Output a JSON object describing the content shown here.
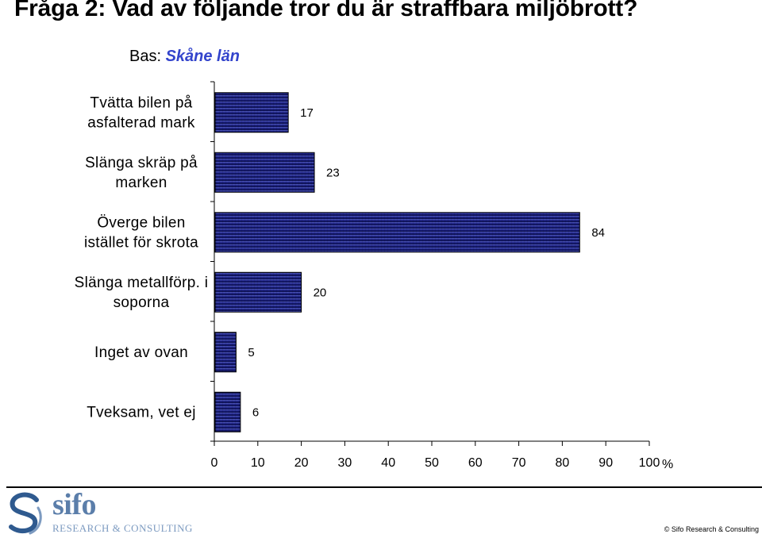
{
  "title": "Fråga 2:  Vad av följande tror du är straffbara miljöbrott?",
  "subtitle": {
    "prefix": "Bas: ",
    "accent": "Skåne län"
  },
  "chart_data": {
    "type": "bar",
    "orientation": "horizontal",
    "categories": [
      [
        "Tvätta bilen på",
        "asfalterad mark"
      ],
      [
        "Slänga skräp på",
        "marken"
      ],
      [
        "Överge bilen",
        "istället för skrota"
      ],
      [
        "Slänga metallförp. i",
        "soporna"
      ],
      [
        "Inget av ovan"
      ],
      [
        "Tveksam, vet ej"
      ]
    ],
    "values": [
      17,
      23,
      84,
      20,
      5,
      6
    ],
    "xlim": [
      0,
      100
    ],
    "xticks": [
      0,
      10,
      20,
      30,
      40,
      50,
      60,
      70,
      80,
      90,
      100
    ],
    "xunit": "%",
    "bar_color": "#1a1f80",
    "grid": false,
    "legend": "none"
  },
  "logo": {
    "name": "sifo",
    "tagline": "RESEARCH & CONSULTING",
    "color": "#5b7eaa"
  },
  "copyright": "© Sifo Research & Consulting"
}
